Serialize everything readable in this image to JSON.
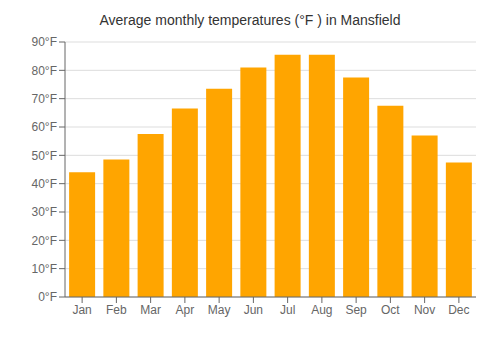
{
  "chart_data": {
    "type": "bar",
    "title": "Average monthly temperatures (°F ) in Mansfield",
    "categories": [
      "Jan",
      "Feb",
      "Mar",
      "Apr",
      "May",
      "Jun",
      "Jul",
      "Aug",
      "Sep",
      "Oct",
      "Nov",
      "Dec"
    ],
    "values": [
      44,
      48.5,
      57.5,
      66.5,
      73.5,
      81,
      85.5,
      85.5,
      77.5,
      67.5,
      57,
      47.5
    ],
    "color": "#FFA500",
    "ylim": [
      0,
      90
    ],
    "yticks": [
      {
        "value": 0,
        "label": "0°F"
      },
      {
        "value": 10,
        "label": "10°F"
      },
      {
        "value": 20,
        "label": "20°F"
      },
      {
        "value": 30,
        "label": "30°F"
      },
      {
        "value": 40,
        "label": "40°F"
      },
      {
        "value": 50,
        "label": "50°F"
      },
      {
        "value": 60,
        "label": "60°F"
      },
      {
        "value": 70,
        "label": "70°F"
      },
      {
        "value": 80,
        "label": "80°F"
      },
      {
        "value": 90,
        "label": "90°F"
      }
    ],
    "grid": true
  }
}
